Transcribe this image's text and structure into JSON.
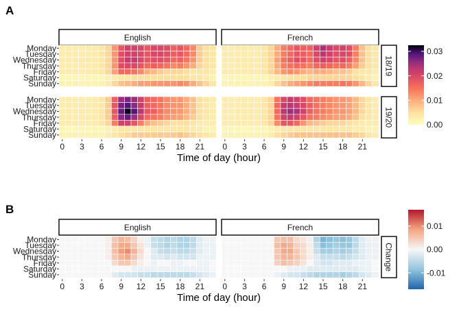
{
  "chart_data": [
    {
      "panel": "A",
      "type": "heatmap",
      "facet_columns": [
        "English",
        "French"
      ],
      "facet_rows": [
        "18/19",
        "19/20"
      ],
      "y_categories": [
        "Monday",
        "Tuesday",
        "Wednesday",
        "Thursday",
        "Friday",
        "Saturday",
        "Sunday"
      ],
      "x_ticks": [
        0,
        3,
        6,
        9,
        12,
        15,
        18,
        21
      ],
      "x_range": [
        0,
        23
      ],
      "xlabel": "Time of day (hour)",
      "color_scale": "magma-reversed",
      "color_limits": [
        0,
        0.0325
      ],
      "legend_ticks": [
        "0.03",
        "0.02",
        "0.01",
        "0.00"
      ],
      "legend_tick_values": [
        0.03,
        0.02,
        0.01,
        0.0
      ],
      "grid_encoding": "7 rows (Monday..Sunday) x 24 hours, values in units of 0.001",
      "grids": {
        "English|18/19": [
          "3,3,3,3,3,3,4,6,12,18,21,21,20,18,20,20,19,17,18,16,13,7,5,4",
          "3,3,3,3,3,3,4,6,12,19,21,21,20,18,20,20,19,17,18,16,13,7,5,4",
          "3,3,3,3,3,3,4,6,12,19,22,22,20,18,19,19,18,16,17,15,12,7,5,4",
          "3,3,3,3,3,3,4,6,12,19,20,20,18,16,17,16,15,13,14,12,10,6,5,4",
          "3,3,3,3,3,3,4,6,11,16,16,15,13,10,9,7,6,6,6,5,4,4,4,3",
          "1,1,1,1,1,1,1,2,3,4,4,5,5,5,5,5,5,5,5,5,4,4,3,2",
          "2,2,2,2,2,2,2,3,6,8,9,10,11,11,12,12,12,12,13,12,10,8,6,4"
        ],
        "French|18/19": [
          "3,3,3,3,3,3,4,6,10,14,16,18,17,17,21,24,22,20,21,19,14,8,5,4",
          "3,3,3,3,3,3,4,6,10,14,16,18,17,16,20,23,21,19,20,19,14,8,5,4",
          "3,3,3,3,3,3,4,6,11,15,17,19,18,16,19,21,20,18,19,17,13,8,5,4",
          "3,3,3,3,3,3,4,6,10,14,15,16,15,14,16,17,16,15,16,14,11,7,5,4",
          "3,3,3,3,3,3,4,6,9,12,13,12,10,9,10,10,9,8,8,7,5,4,4,3",
          "1,1,1,1,1,1,1,2,3,4,5,5,5,6,6,6,6,6,6,6,5,4,3,2",
          "2,2,2,2,2,2,2,3,6,8,10,11,12,13,14,14,14,14,15,14,12,9,6,4"
        ],
        "English|19/20": [
          "3,3,3,3,3,3,4,7,17,25,27,25,21,17,16,15,13,12,12,10,8,5,4,3",
          "3,3,3,3,3,3,4,7,18,27,29,26,22,17,16,15,13,12,12,10,8,5,4,3",
          "3,3,3,3,3,3,4,7,18,28,32,29,23,18,17,15,13,12,12,10,8,5,4,3",
          "3,3,3,3,3,3,4,7,17,26,28,25,20,16,15,14,12,11,11,9,7,5,4,3",
          "3,3,3,3,3,3,4,6,14,21,21,18,14,10,8,7,6,5,5,5,4,3,3,3",
          "1,1,1,1,1,1,1,2,3,4,4,4,4,4,4,4,4,4,4,4,3,3,2,2",
          "2,2,2,2,2,2,2,3,4,5,6,7,7,7,7,7,7,7,8,7,6,5,4,3"
        ],
        "French|19/20": [
          "3,3,3,3,3,3,4,6,15,20,22,21,19,16,15,14,13,12,12,11,9,6,4,3",
          "3,3,3,3,3,3,4,6,16,22,23,22,20,17,15,14,13,12,12,11,9,6,4,3",
          "3,3,3,3,3,3,4,6,16,23,25,24,21,17,15,14,13,12,12,11,9,6,4,3",
          "3,3,3,3,3,3,4,6,15,21,22,21,18,15,14,13,12,11,11,10,8,5,4,3",
          "3,3,3,3,3,3,4,6,13,18,18,16,12,9,8,7,6,6,6,5,4,3,3,3",
          "1,1,1,1,1,1,1,2,3,4,4,4,4,4,4,4,4,4,4,4,3,3,2,2",
          "2,2,2,2,2,2,2,3,5,6,7,8,8,8,8,8,8,8,8,8,7,6,4,3"
        ]
      }
    },
    {
      "panel": "B",
      "type": "heatmap",
      "facet_columns": [
        "English",
        "French"
      ],
      "facet_rows": [
        "Change"
      ],
      "y_categories": [
        "Monday",
        "Tuesday",
        "Wednesday",
        "Thursday",
        "Friday",
        "Saturday",
        "Sunday"
      ],
      "x_ticks": [
        0,
        3,
        6,
        9,
        12,
        15,
        18,
        21
      ],
      "x_range": [
        0,
        23
      ],
      "xlabel": "Time of day (hour)",
      "color_scale": "red-white-blue diverging",
      "color_limits": [
        -0.017,
        0.017
      ],
      "legend_ticks": [
        "0.01",
        "0.00",
        "-0.01"
      ],
      "legend_tick_values": [
        0.01,
        0.0,
        -0.01
      ],
      "grid_encoding": "7 rows (Monday..Sunday) x 24 hours, change values in units of 0.001",
      "grids": {
        "English|Change": [
          "0,0,0,0,0,0,0,1,5,7,6,4,1,-1,-4,-5,-6,-5,-6,-6,-5,-2,-1,-1",
          "0,0,0,0,0,0,0,1,6,8,8,5,2,-1,-4,-5,-6,-5,-6,-6,-5,-2,-1,-1",
          "0,0,0,0,0,0,0,1,6,9,10,7,3,0,-2,-4,-5,-4,-5,-5,-4,-2,-1,-1",
          "0,0,0,0,0,0,0,1,5,7,8,5,2,0,-2,-2,-3,-2,-3,-3,-3,-1,-1,-1",
          "0,0,0,0,0,0,0,0,3,5,5,3,1,0,-1,0,0,-1,-1,0,0,-1,-1,0",
          "0,0,0,0,0,0,0,0,0,0,0,-1,-1,-1,-1,-1,-1,-1,-1,-1,-1,-1,-1,0",
          "0,0,0,0,0,0,0,0,-2,-3,-3,-3,-4,-4,-5,-5,-5,-5,-5,-5,-4,-3,-2,-1"
        ],
        "French|Change": [
          "0,0,0,0,0,0,0,0,5,6,6,3,2,-1,-6,-10,-9,-8,-9,-8,-5,-2,-1,-1",
          "0,0,0,0,0,0,0,0,6,8,7,4,3,1,-5,-9,-8,-7,-8,-8,-5,-2,-1,-1",
          "0,0,0,0,0,0,0,0,5,8,8,5,3,1,-4,-7,-7,-6,-7,-6,-4,-2,-1,-1",
          "0,0,0,0,0,0,0,0,5,7,7,5,3,1,-2,-4,-4,-4,-5,-4,-3,-2,-1,-1",
          "0,0,0,0,0,0,0,0,4,6,5,4,2,0,-2,-3,-3,-2,-2,-2,-1,-1,-1,0",
          "0,0,0,0,0,0,0,0,0,0,-1,-1,-1,-2,-2,-2,-2,-2,-2,-2,-2,-1,-1,0",
          "0,0,0,0,0,0,0,0,-1,-2,-3,-3,-4,-5,-6,-6,-6,-6,-7,-6,-5,-3,-2,-1"
        ]
      }
    }
  ]
}
